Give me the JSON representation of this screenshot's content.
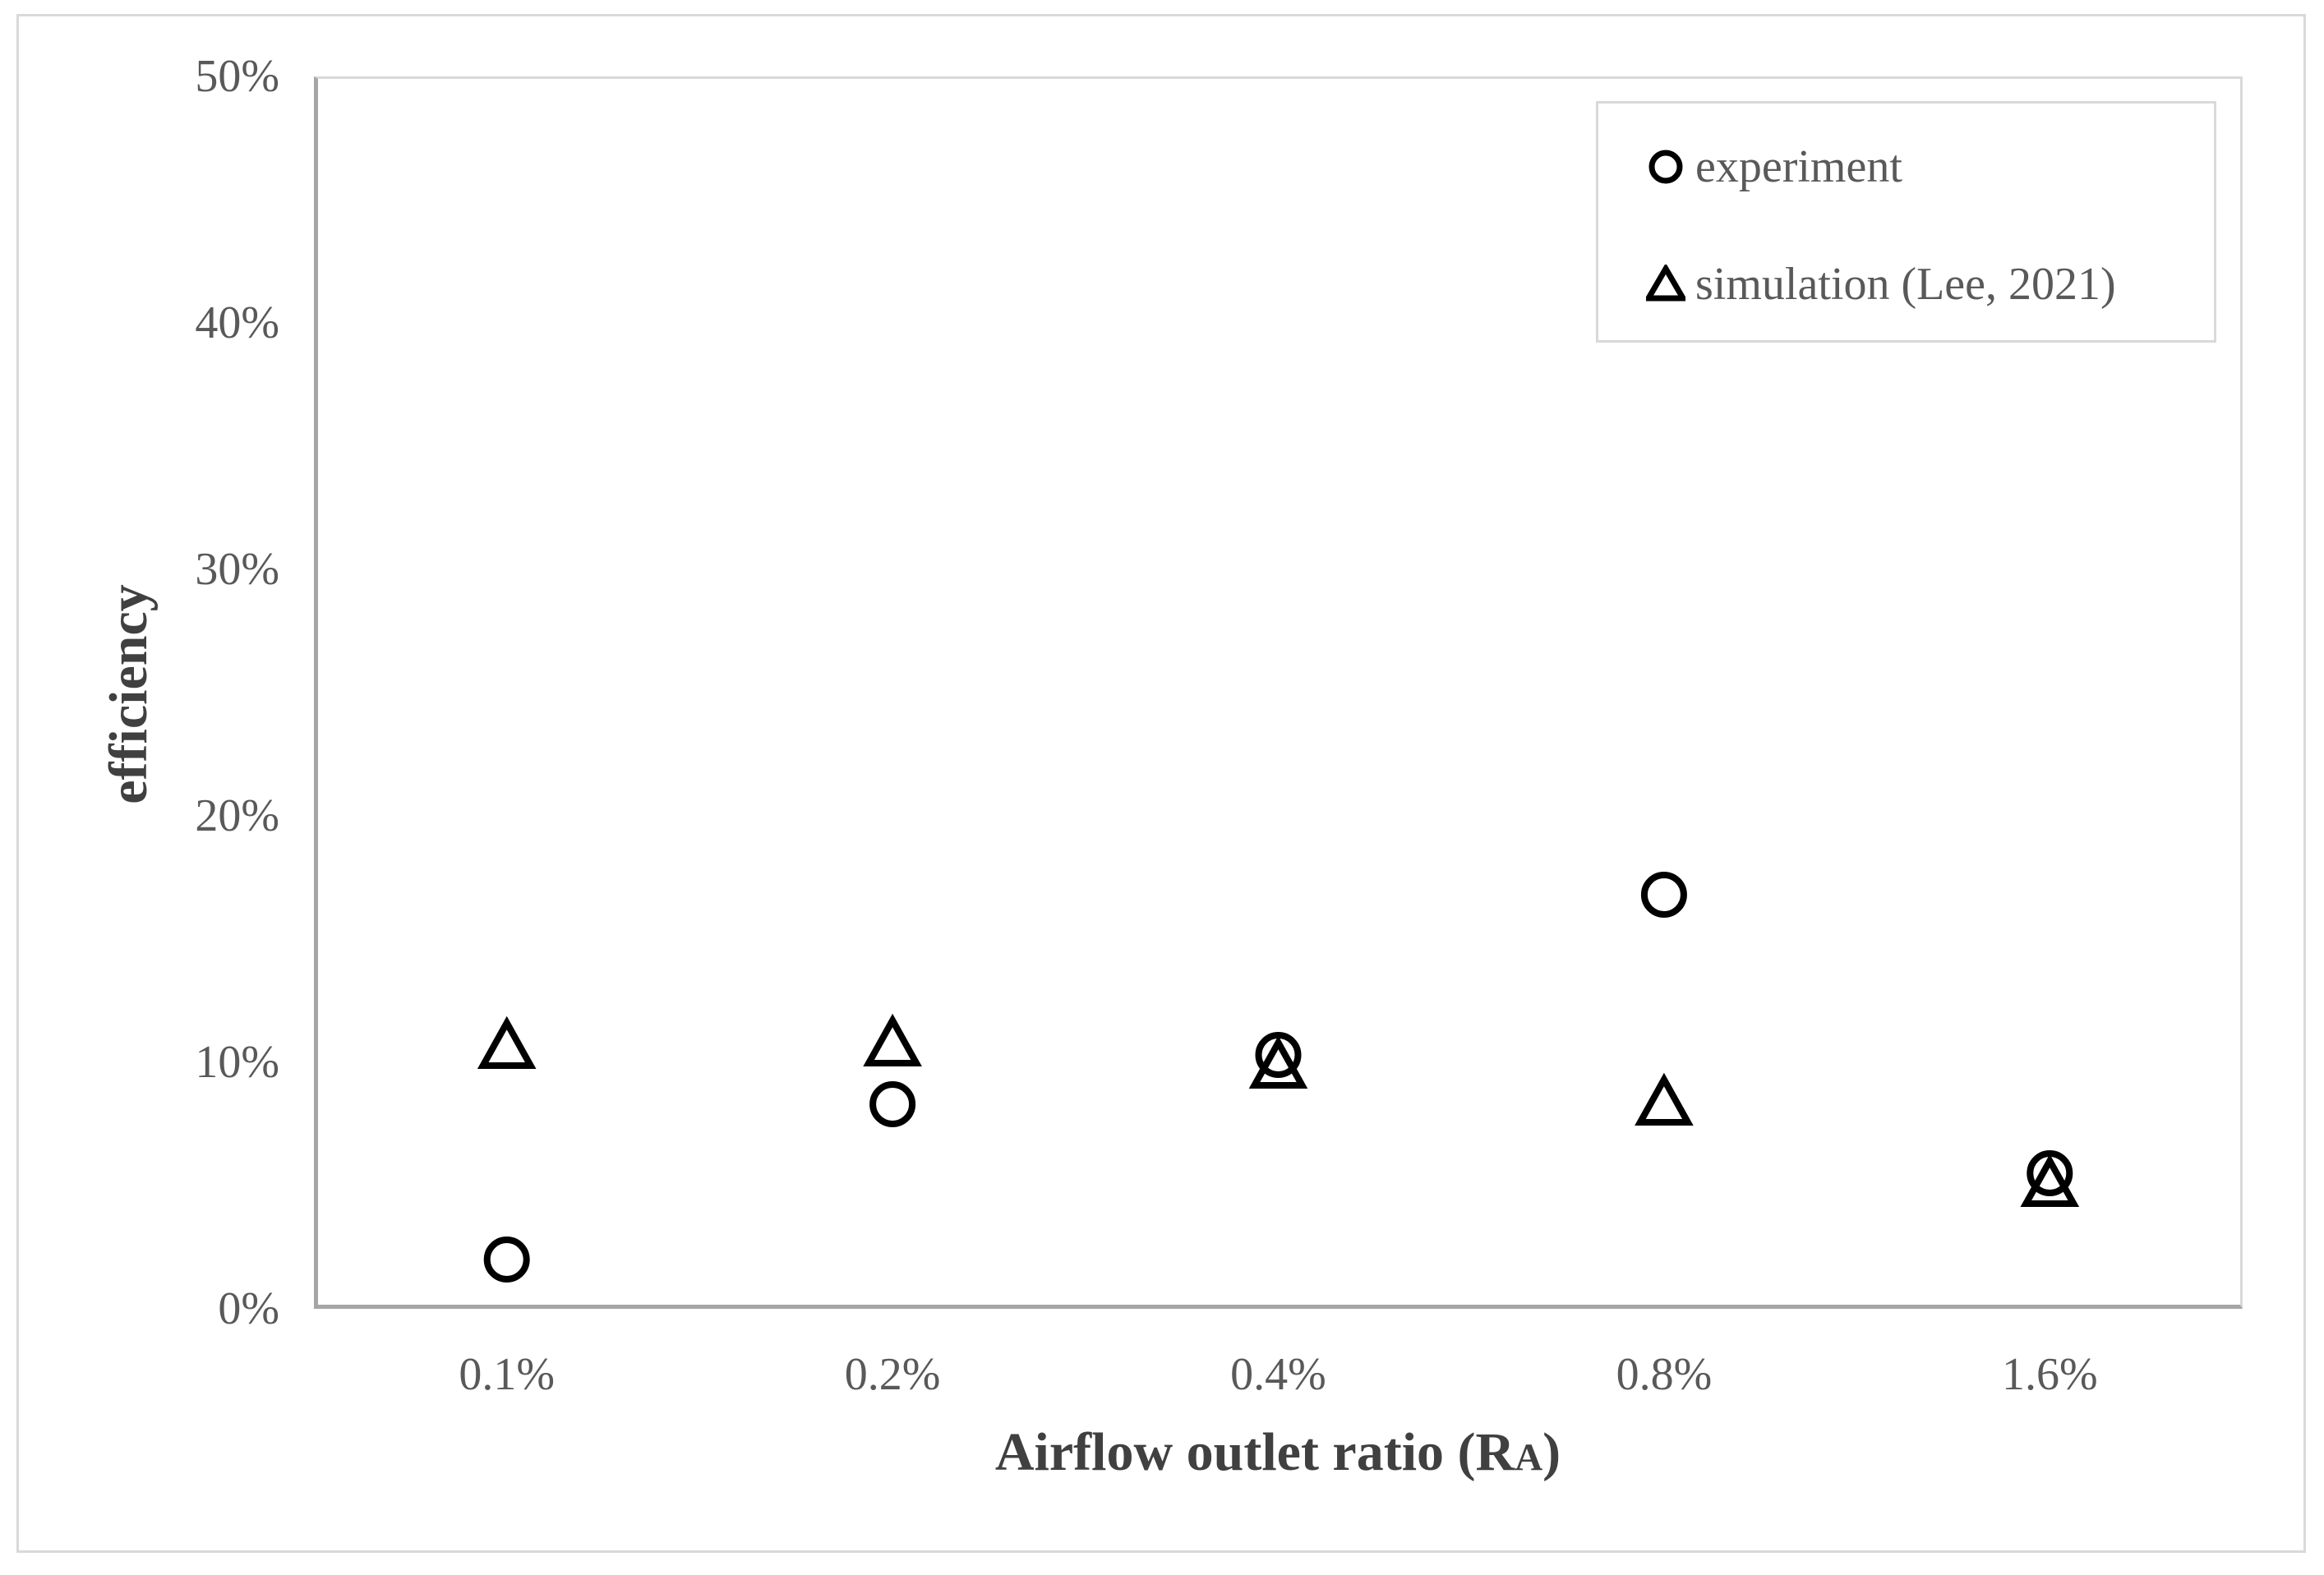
{
  "chart_data": {
    "type": "scatter",
    "categories": [
      "0.1%",
      "0.2%",
      "0.4%",
      "0.8%",
      "1.6%"
    ],
    "series": [
      {
        "name": "experiment",
        "marker": "circle",
        "values": [
          2.0,
          8.3,
          10.3,
          16.8,
          5.5
        ]
      },
      {
        "name": "simulation (Lee, 2021)",
        "marker": "triangle",
        "values": [
          10.7,
          10.8,
          9.9,
          8.4,
          5.1
        ]
      }
    ],
    "title": "",
    "xlabel": {
      "prefix": "Airflow outlet ratio (R",
      "subscript": "A",
      "suffix": ")"
    },
    "ylabel": "efficiency",
    "y_ticks": [
      {
        "label": "0%",
        "value": 0
      },
      {
        "label": "10%",
        "value": 10
      },
      {
        "label": "20%",
        "value": 20
      },
      {
        "label": "30%",
        "value": 30
      },
      {
        "label": "40%",
        "value": 40
      },
      {
        "label": "50%",
        "value": 50
      }
    ],
    "ylim": [
      0,
      50
    ],
    "grid": false,
    "legend_position": "top-right",
    "legend_icons": [
      "circle-marker-icon",
      "triangle-marker-icon"
    ]
  },
  "colors": {
    "marker": "#000000",
    "tick_text": "#595959",
    "axis_title_text": "#404040",
    "axis_line": "#a6a6a6",
    "light_border": "#d9d9d9",
    "background": "#ffffff"
  }
}
